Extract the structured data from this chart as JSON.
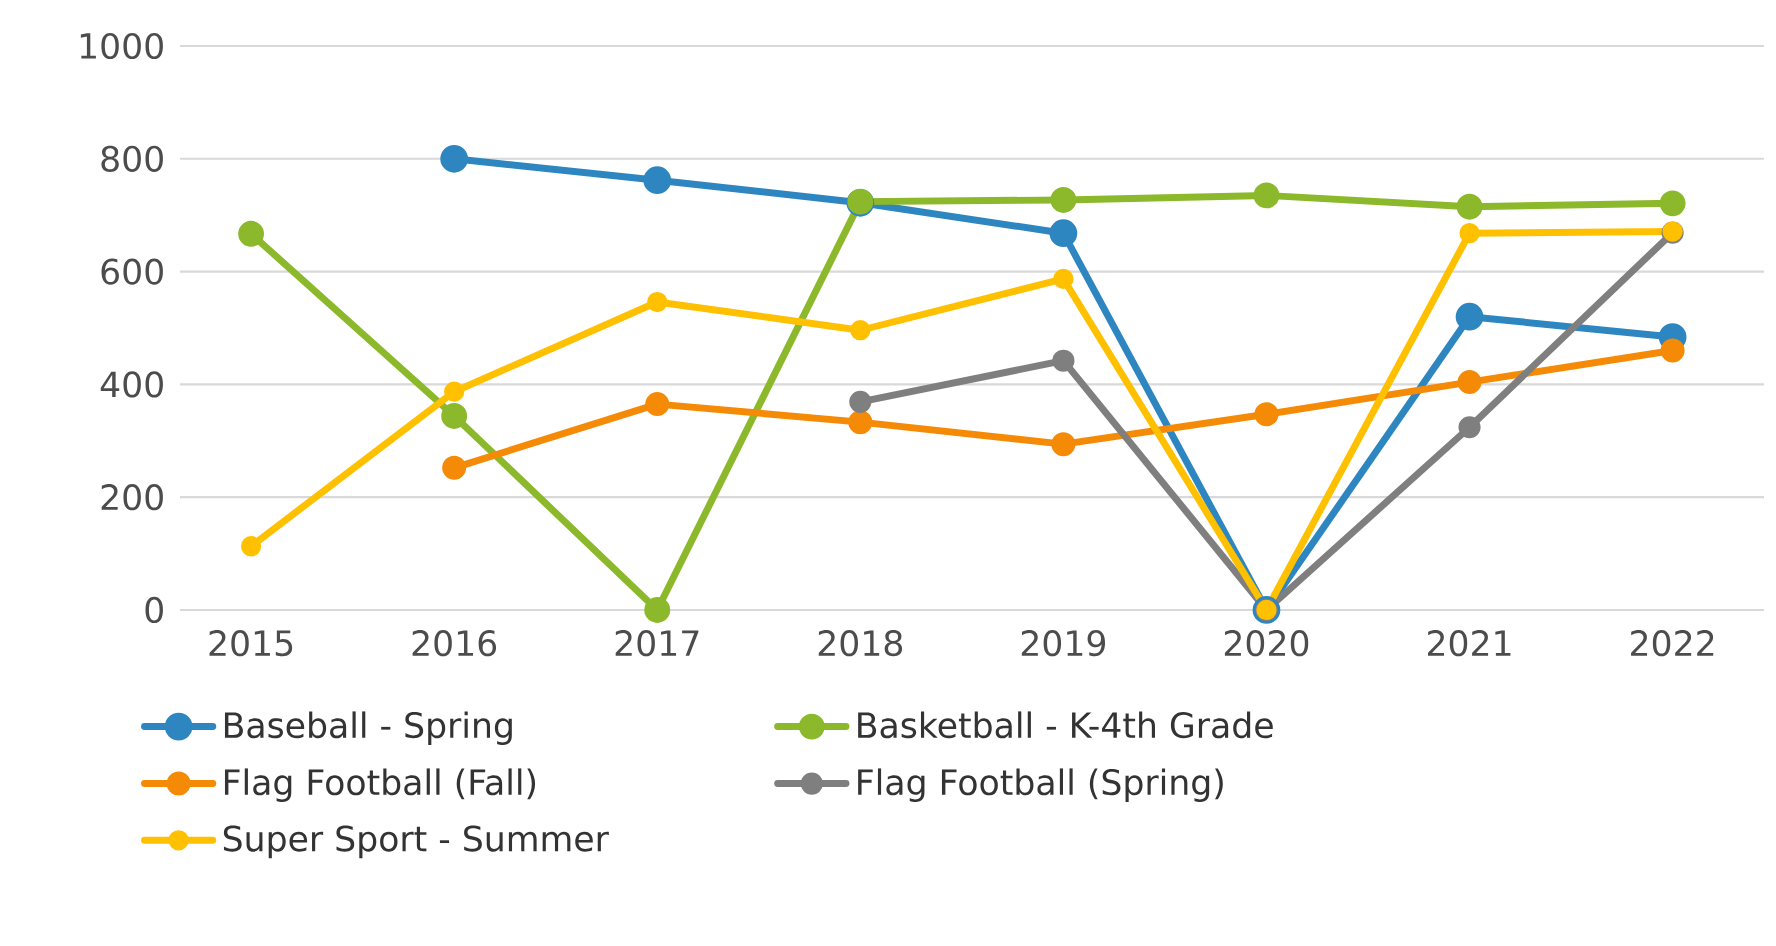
{
  "chart_data": {
    "type": "line",
    "categories": [
      "2015",
      "2016",
      "2017",
      "2018",
      "2019",
      "2020",
      "2021",
      "2022"
    ],
    "series": [
      {
        "name": "Baseball - Spring",
        "color": "#2e86c1",
        "values": [
          null,
          800,
          762,
          722,
          668,
          0,
          520,
          484
        ]
      },
      {
        "name": "Basketball - K-4th Grade",
        "color": "#8cb82b",
        "values": [
          667,
          344,
          0,
          724,
          727,
          735,
          715,
          721
        ]
      },
      {
        "name": "Flag Football (Fall)",
        "color": "#f58a07",
        "values": [
          null,
          252,
          365,
          333,
          294,
          347,
          404,
          460
        ]
      },
      {
        "name": "Flag Football (Spring)",
        "color": "#7f7f7f",
        "values": [
          null,
          null,
          null,
          369,
          442,
          0,
          324,
          669
        ]
      },
      {
        "name": "Super Sport - Summer",
        "color": "#ffc000",
        "values": [
          113,
          387,
          546,
          496,
          587,
          0,
          668,
          671
        ]
      }
    ],
    "ylim": [
      0,
      1000
    ],
    "yticks": [
      0,
      200,
      400,
      600,
      800,
      1000
    ],
    "grid": "y",
    "legend": "bottom",
    "marker": "circle",
    "line_style": "solid"
  }
}
